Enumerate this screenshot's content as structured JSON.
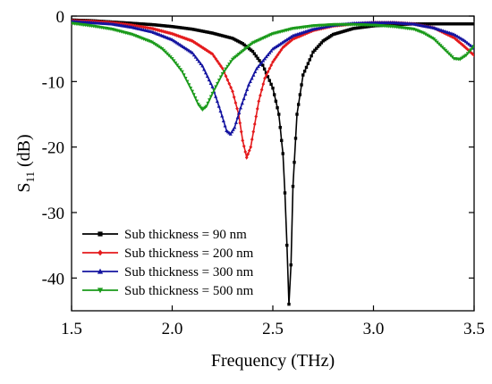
{
  "chart_data": {
    "type": "line",
    "title": "",
    "xlabel": "Frequency (THz)",
    "ylabel_main": "S",
    "ylabel_sub": "11",
    "ylabel_unit": " (dB)",
    "xlim": [
      1.5,
      3.5
    ],
    "ylim": [
      -45,
      0
    ],
    "xticks": [
      1.5,
      2.0,
      2.5,
      3.0,
      3.5
    ],
    "xtick_labels": [
      "1.5",
      "2.0",
      "2.5",
      "3.0",
      "3.5"
    ],
    "yticks": [
      0,
      -10,
      -20,
      -30,
      -40
    ],
    "ytick_labels": [
      "0",
      "-10",
      "-20",
      "-30",
      "-40"
    ],
    "grid": false,
    "legend_position": "bottom-left",
    "series": [
      {
        "name": "Sub thickness = 90 nm",
        "color": "#000000",
        "marker": "square",
        "points": [
          [
            1.5,
            -0.6
          ],
          [
            1.6,
            -0.7
          ],
          [
            1.7,
            -0.9
          ],
          [
            1.8,
            -1.1
          ],
          [
            1.9,
            -1.3
          ],
          [
            2.0,
            -1.6
          ],
          [
            2.1,
            -2.0
          ],
          [
            2.2,
            -2.6
          ],
          [
            2.3,
            -3.4
          ],
          [
            2.35,
            -4.2
          ],
          [
            2.4,
            -5.4
          ],
          [
            2.45,
            -7.5
          ],
          [
            2.5,
            -11
          ],
          [
            2.53,
            -15
          ],
          [
            2.55,
            -21
          ],
          [
            2.56,
            -27
          ],
          [
            2.57,
            -35
          ],
          [
            2.58,
            -44
          ],
          [
            2.59,
            -38
          ],
          [
            2.6,
            -26
          ],
          [
            2.62,
            -15
          ],
          [
            2.65,
            -9
          ],
          [
            2.7,
            -5.5
          ],
          [
            2.75,
            -3.8
          ],
          [
            2.8,
            -2.8
          ],
          [
            2.9,
            -1.9
          ],
          [
            3.0,
            -1.5
          ],
          [
            3.1,
            -1.3
          ],
          [
            3.2,
            -1.2
          ],
          [
            3.3,
            -1.2
          ],
          [
            3.4,
            -1.2
          ],
          [
            3.5,
            -1.2
          ]
        ]
      },
      {
        "name": "Sub thickness = 200 nm",
        "color": "#e41a1c",
        "marker": "diamond",
        "points": [
          [
            1.5,
            -0.7
          ],
          [
            1.6,
            -0.8
          ],
          [
            1.7,
            -1.0
          ],
          [
            1.8,
            -1.4
          ],
          [
            1.9,
            -1.9
          ],
          [
            2.0,
            -2.7
          ],
          [
            2.1,
            -3.8
          ],
          [
            2.2,
            -5.8
          ],
          [
            2.25,
            -8
          ],
          [
            2.3,
            -11.5
          ],
          [
            2.33,
            -15
          ],
          [
            2.35,
            -19
          ],
          [
            2.37,
            -21.6
          ],
          [
            2.39,
            -20
          ],
          [
            2.41,
            -16.5
          ],
          [
            2.43,
            -13
          ],
          [
            2.46,
            -9.5
          ],
          [
            2.5,
            -7
          ],
          [
            2.55,
            -4.8
          ],
          [
            2.6,
            -3.5
          ],
          [
            2.7,
            -2.2
          ],
          [
            2.8,
            -1.5
          ],
          [
            2.9,
            -1.2
          ],
          [
            3.0,
            -1.0
          ],
          [
            3.1,
            -1.0
          ],
          [
            3.2,
            -1.2
          ],
          [
            3.3,
            -1.8
          ],
          [
            3.4,
            -3.3
          ],
          [
            3.45,
            -4.6
          ],
          [
            3.5,
            -6.0
          ]
        ]
      },
      {
        "name": "Sub thickness = 300 nm",
        "color": "#1414a0",
        "marker": "triangle-up",
        "points": [
          [
            1.5,
            -0.8
          ],
          [
            1.6,
            -1.0
          ],
          [
            1.7,
            -1.2
          ],
          [
            1.8,
            -1.7
          ],
          [
            1.9,
            -2.4
          ],
          [
            2.0,
            -3.6
          ],
          [
            2.1,
            -5.6
          ],
          [
            2.15,
            -7.6
          ],
          [
            2.2,
            -10.8
          ],
          [
            2.24,
            -14.5
          ],
          [
            2.27,
            -17.5
          ],
          [
            2.29,
            -18
          ],
          [
            2.31,
            -17
          ],
          [
            2.34,
            -14
          ],
          [
            2.38,
            -10.5
          ],
          [
            2.42,
            -8
          ],
          [
            2.5,
            -5
          ],
          [
            2.6,
            -3.0
          ],
          [
            2.7,
            -2.0
          ],
          [
            2.8,
            -1.4
          ],
          [
            2.9,
            -1.1
          ],
          [
            3.0,
            -1.0
          ],
          [
            3.1,
            -1.0
          ],
          [
            3.2,
            -1.2
          ],
          [
            3.3,
            -1.8
          ],
          [
            3.4,
            -2.8
          ],
          [
            3.45,
            -3.7
          ],
          [
            3.5,
            -4.9
          ]
        ]
      },
      {
        "name": "Sub thickness = 500 nm",
        "color": "#1a9a1a",
        "marker": "triangle-down",
        "points": [
          [
            1.5,
            -1.1
          ],
          [
            1.6,
            -1.5
          ],
          [
            1.7,
            -2.0
          ],
          [
            1.8,
            -2.8
          ],
          [
            1.9,
            -4.0
          ],
          [
            1.95,
            -5.0
          ],
          [
            2.0,
            -6.5
          ],
          [
            2.05,
            -8.5
          ],
          [
            2.1,
            -11.5
          ],
          [
            2.13,
            -13.5
          ],
          [
            2.15,
            -14.3
          ],
          [
            2.17,
            -13.8
          ],
          [
            2.2,
            -11.8
          ],
          [
            2.25,
            -8.8
          ],
          [
            2.3,
            -6.6
          ],
          [
            2.4,
            -4.1
          ],
          [
            2.5,
            -2.7
          ],
          [
            2.6,
            -1.9
          ],
          [
            2.7,
            -1.5
          ],
          [
            2.8,
            -1.3
          ],
          [
            2.9,
            -1.3
          ],
          [
            3.0,
            -1.4
          ],
          [
            3.1,
            -1.6
          ],
          [
            3.2,
            -2.0
          ],
          [
            3.25,
            -2.6
          ],
          [
            3.3,
            -3.5
          ],
          [
            3.35,
            -5.0
          ],
          [
            3.4,
            -6.5
          ],
          [
            3.43,
            -6.6
          ],
          [
            3.46,
            -6.0
          ],
          [
            3.5,
            -4.6
          ]
        ]
      }
    ]
  }
}
